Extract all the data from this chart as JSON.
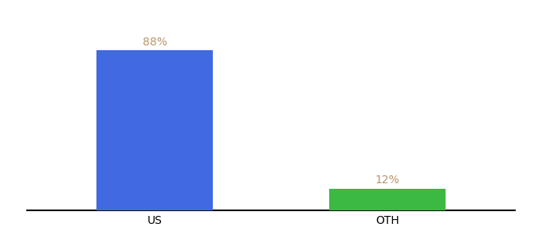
{
  "categories": [
    "US",
    "OTH"
  ],
  "values": [
    88,
    12
  ],
  "bar_colors": [
    "#4169e1",
    "#3cb943"
  ],
  "label_texts": [
    "88%",
    "12%"
  ],
  "label_color": "#b8956a",
  "background_color": "#ffffff",
  "ylim": [
    0,
    100
  ],
  "bar_width": 0.5,
  "tick_fontsize": 10,
  "label_fontsize": 10
}
